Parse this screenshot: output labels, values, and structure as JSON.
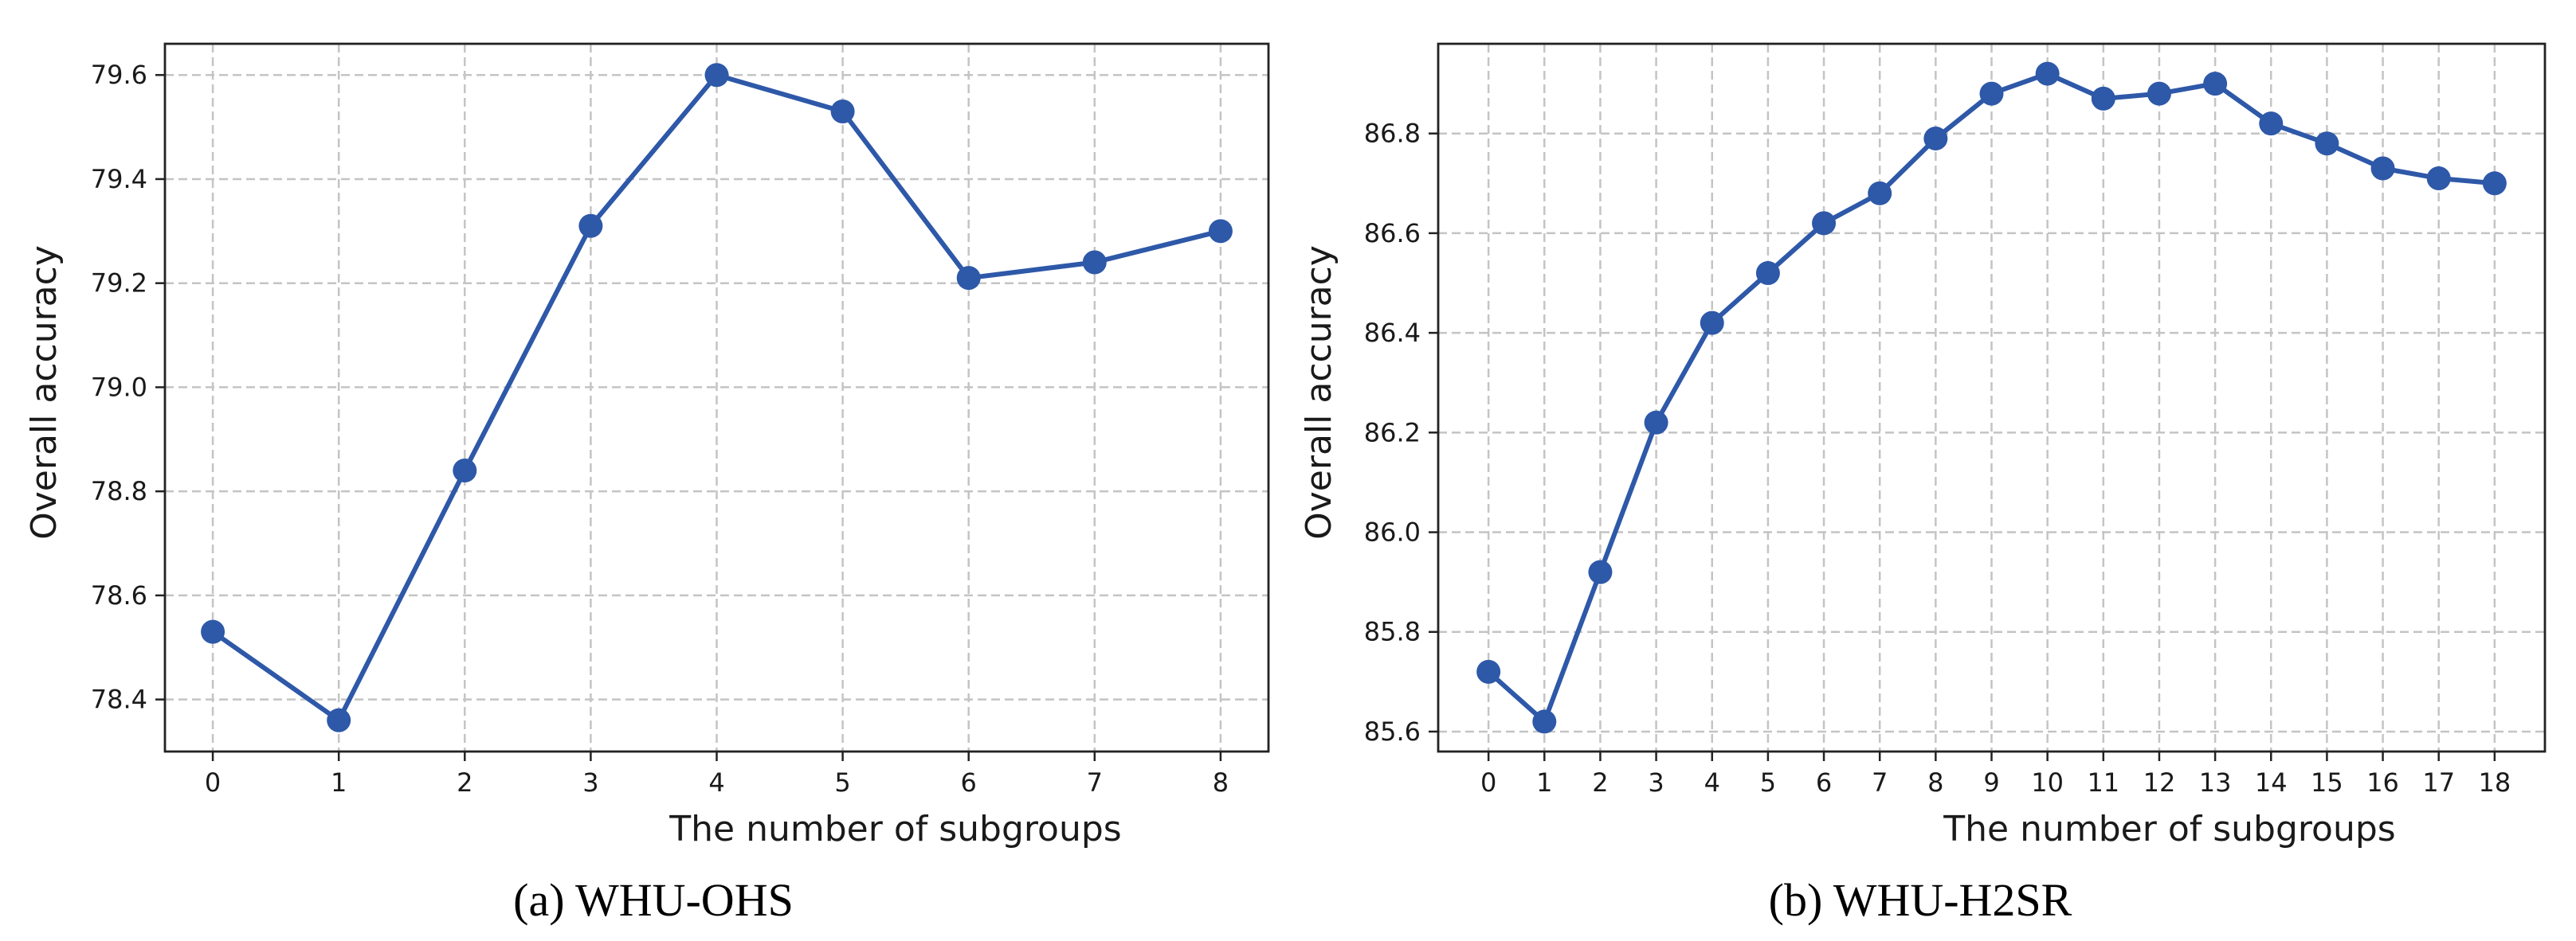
{
  "chart_data": [
    {
      "type": "line",
      "caption": "(a) WHU-OHS",
      "xlabel": "The number of subgroups",
      "ylabel": "Overall accuracy",
      "x": [
        0,
        1,
        2,
        3,
        4,
        5,
        6,
        7,
        8
      ],
      "xticks": [
        0,
        1,
        2,
        3,
        4,
        5,
        6,
        7,
        8
      ],
      "values": [
        78.53,
        78.36,
        78.84,
        79.31,
        79.6,
        79.53,
        79.21,
        79.24,
        79.3
      ],
      "yticks": [
        "78.4",
        "78.6",
        "78.8",
        "79.0",
        "79.2",
        "79.4",
        "79.6"
      ],
      "xlim": [
        -0.38,
        8.38
      ],
      "ylim": [
        78.3,
        79.66
      ],
      "grid": true,
      "color": "#2e58a8"
    },
    {
      "type": "line",
      "caption": "(b) WHU-H2SR",
      "xlabel": "The number of subgroups",
      "ylabel": "Overall accuracy",
      "x": [
        0,
        1,
        2,
        3,
        4,
        5,
        6,
        7,
        8,
        9,
        10,
        11,
        12,
        13,
        14,
        15,
        16,
        17,
        18
      ],
      "xticks": [
        0,
        1,
        2,
        3,
        4,
        5,
        6,
        7,
        8,
        9,
        10,
        11,
        12,
        13,
        14,
        15,
        16,
        17,
        18
      ],
      "values": [
        85.72,
        85.62,
        85.92,
        86.22,
        86.42,
        86.52,
        86.62,
        86.68,
        86.79,
        86.88,
        86.92,
        86.87,
        86.88,
        86.9,
        86.82,
        86.78,
        86.73,
        86.71,
        86.7
      ],
      "yticks": [
        "85.6",
        "85.8",
        "86.0",
        "86.2",
        "86.4",
        "86.6",
        "86.8"
      ],
      "xlim": [
        -0.9,
        18.9
      ],
      "ylim": [
        85.56,
        86.98
      ],
      "grid": true,
      "color": "#2e58a8"
    }
  ]
}
